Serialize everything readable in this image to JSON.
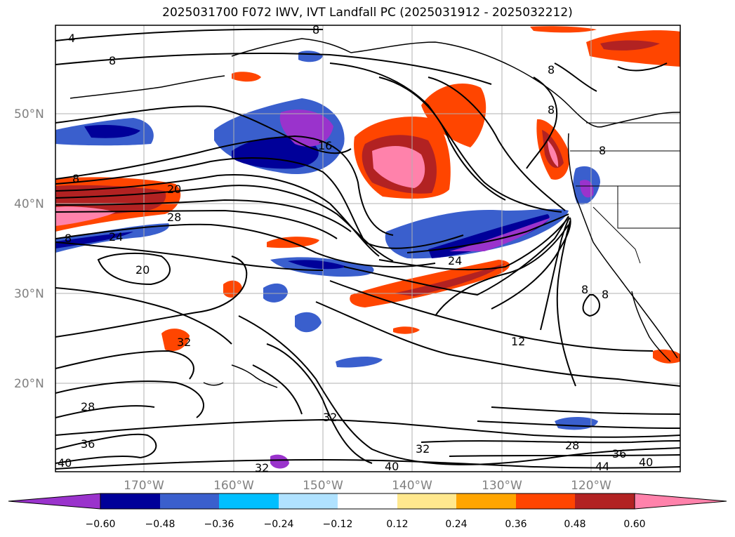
{
  "title": "2025031700 F072 IWV, IVT Landfall PC (2025031912 - 2025032212)",
  "colors": {
    "purple": "#9a33cc",
    "navy": "#000099",
    "blue": "#3a5fcd",
    "deepskyblue": "#00bfff",
    "lightblue": "#b0e2ff",
    "white": "#ffffff",
    "lightyellow": "#ffe88e",
    "orange": "#ffa500",
    "orangered": "#ff4500",
    "firebrick": "#b22222",
    "pink": "#ff82ab",
    "land_outline": "#000000",
    "grid": "#b0b0b0"
  },
  "axes": {
    "lat_labels": [
      "50°N",
      "40°N",
      "30°N",
      "20°N"
    ],
    "lon_labels": [
      "170°W",
      "160°W",
      "150°W",
      "140°W",
      "130°W",
      "120°W"
    ]
  },
  "colorbar": {
    "colors": [
      "#9a33cc",
      "#000099",
      "#3a5fcd",
      "#00bfff",
      "#b0e2ff",
      "#ffffff",
      "#ffe88e",
      "#ffa500",
      "#ff4500",
      "#b22222",
      "#ff82ab"
    ],
    "tick_labels": [
      "−0.60",
      "−0.48",
      "−0.36",
      "−0.24",
      "−0.12",
      "0.12",
      "0.24",
      "0.36",
      "0.48",
      "0.60"
    ]
  },
  "contour_labels": [
    {
      "text": "4"
    },
    {
      "text": "8"
    },
    {
      "text": "8"
    },
    {
      "text": "8"
    },
    {
      "text": "8"
    },
    {
      "text": "8"
    },
    {
      "text": "16"
    },
    {
      "text": "20"
    },
    {
      "text": "28"
    },
    {
      "text": "24"
    },
    {
      "text": "20"
    },
    {
      "text": "24"
    },
    {
      "text": "12"
    },
    {
      "text": "32"
    },
    {
      "text": "32"
    },
    {
      "text": "28"
    },
    {
      "text": "36"
    },
    {
      "text": "40"
    },
    {
      "text": "28"
    },
    {
      "text": "36"
    },
    {
      "text": "40"
    },
    {
      "text": "32"
    },
    {
      "text": "40"
    },
    {
      "text": "44"
    },
    {
      "text": "8"
    },
    {
      "text": "8"
    },
    {
      "text": "8"
    },
    {
      "text": "32"
    },
    {
      "text": "8"
    }
  ]
}
